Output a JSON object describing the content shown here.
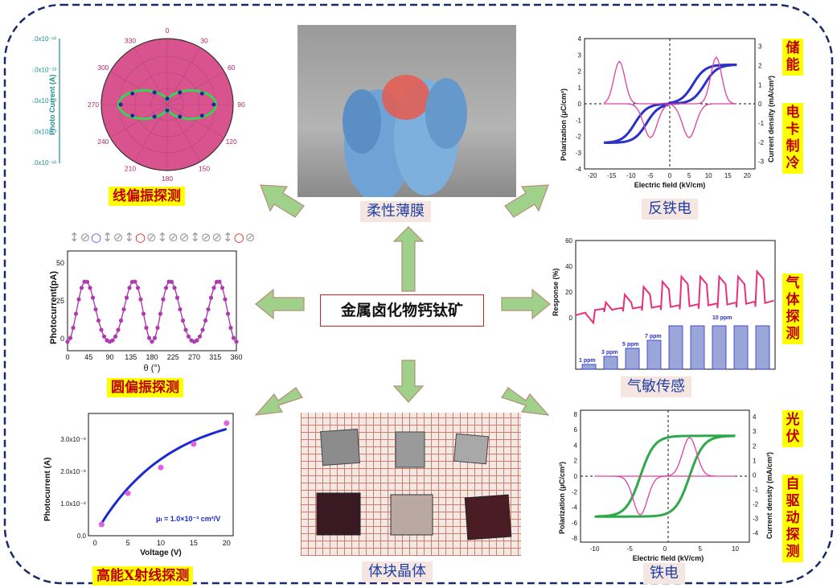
{
  "center_title": "金属卤化物钙钛矿",
  "labels": {
    "linear": "线偏振探测",
    "circular": "圆偏振探测",
    "xray": "高能X射线探测",
    "flexible": "柔性薄膜",
    "bulk": "体块晶体",
    "antiferro": "反铁电",
    "gas": "气敏传感",
    "ferro": "铁电",
    "storage": "储能",
    "ec_cooling": "电卡制冷",
    "gas_detect": "气体探测",
    "pv": "光伏",
    "self_driven": "自驱动探测"
  },
  "polar_plot": {
    "ylabel": "Photo Current (A)",
    "radial_ticks": [
      "1.0x10⁻¹²",
      "8.0x10⁻¹³",
      "6.0x10⁻¹³",
      "8.0x10⁻¹³",
      "1.0x10⁻¹²"
    ],
    "angle_ticks": [
      "0",
      "30",
      "60",
      "90",
      "120",
      "150",
      "180",
      "210",
      "240",
      "270",
      "300",
      "330"
    ],
    "color_fill": "#d9538f",
    "color_curve": "#39d353"
  },
  "circ_plot": {
    "ylabel": "Photocurrent(pA)",
    "xlabel": "θ (°)",
    "x_ticks": [
      "0",
      "45",
      "90",
      "135",
      "180",
      "225",
      "270",
      "315",
      "360"
    ],
    "y_ticks": [
      "0",
      "25",
      "50"
    ],
    "color": "#b03ab0"
  },
  "xray_plot": {
    "ylabel": "Photocurrent (A)",
    "xlabel": "Voltage (V)",
    "x_ticks": [
      "0",
      "5",
      "10",
      "15",
      "20"
    ],
    "y_ticks": [
      "0.0",
      "1.0x10⁻⁹",
      "2.0x10⁻⁹",
      "3.0x10⁻⁹"
    ],
    "mobility": "μₗ = 1.0×10⁻³ cm²/V",
    "points": [
      [
        1,
        0.35
      ],
      [
        5,
        1.32
      ],
      [
        10,
        2.12
      ],
      [
        15,
        2.85
      ],
      [
        20,
        3.5
      ]
    ]
  },
  "afe_plot": {
    "ylabel": "Polarization (μC/cm²)",
    "ylabel2": "Current density (mA/cm²)",
    "xlabel": "Electric field (kV/cm)",
    "x_ticks": [
      "-20",
      "-15",
      "-10",
      "-5",
      "0",
      "5",
      "10",
      "15",
      "20"
    ],
    "y_ticks": [
      "4",
      "3",
      "2",
      "1",
      "0",
      "-1",
      "-2",
      "-3",
      "-4"
    ],
    "y2_ticks": [
      "3",
      "2",
      "1",
      "0",
      "-1",
      "-2",
      "-3"
    ]
  },
  "gas_plot": {
    "ylabel": "Response (%)",
    "y_ticks": [
      "60",
      "40",
      "20",
      "0"
    ],
    "bar_labels": [
      "1 ppm",
      "3 ppm",
      "5 ppm",
      "7 ppm",
      "10 ppm"
    ]
  },
  "fe_plot": {
    "ylabel": "Polarization (μC/cm²)",
    "ylabel2": "Current density (mA/cm²)",
    "xlabel": "Electric field (kV/cm)",
    "x_ticks": [
      "-10",
      "-5",
      "0",
      "5",
      "10"
    ],
    "y_ticks": [
      "8",
      "6",
      "4",
      "2",
      "0",
      "-2",
      "-4",
      "-6",
      "-8"
    ],
    "y2_ticks": [
      "4",
      "3",
      "2",
      "1",
      "0",
      "-1",
      "-2",
      "-3",
      "-4"
    ]
  }
}
